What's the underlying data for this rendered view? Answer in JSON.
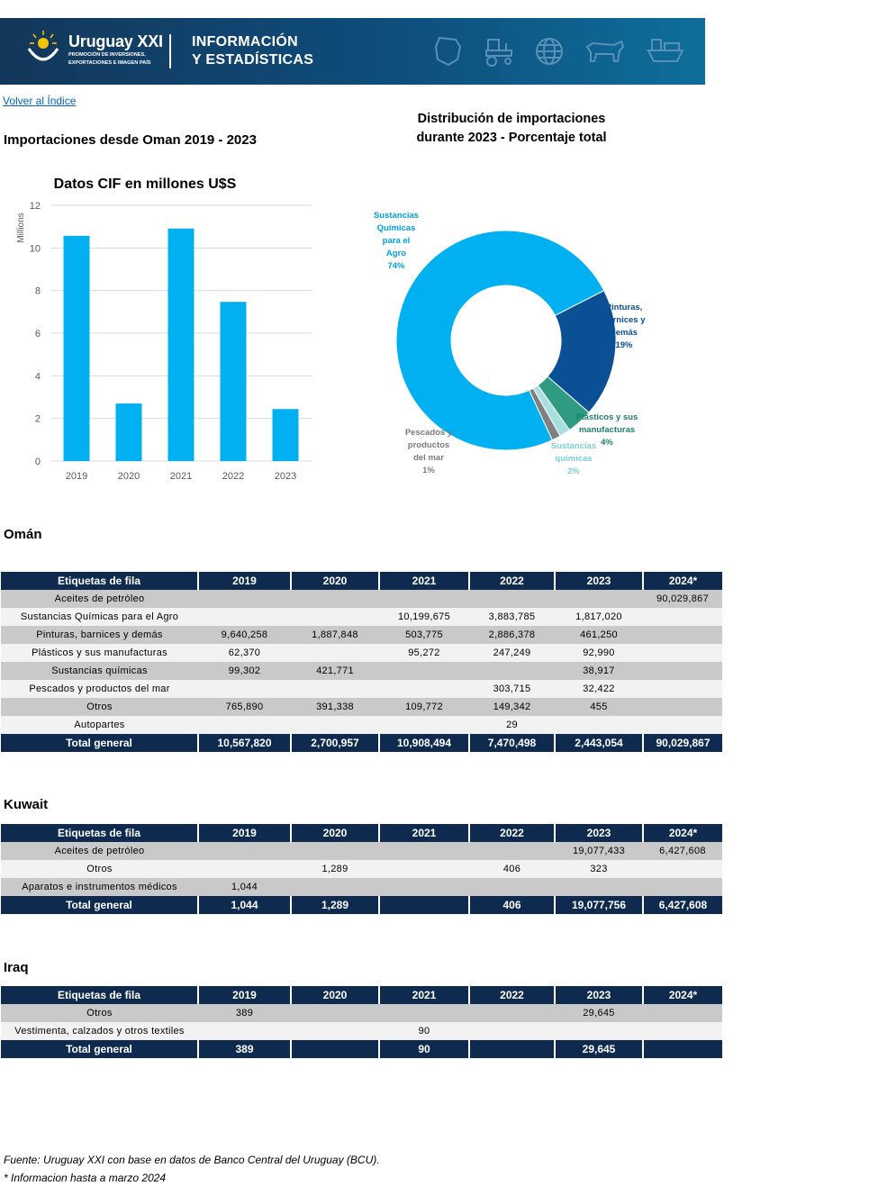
{
  "header": {
    "brand": "Uruguay XXI",
    "brand_sub_1": "PROMOCIÓN DE INVERSIONES,",
    "brand_sub_2": "EXPORTACIONES E IMAGEN PAÍS",
    "section_line_1": "INFORMACIÓN",
    "section_line_2": "Y ESTADÍSTICAS",
    "icons": [
      "uruguay-map-icon",
      "tractor-icon",
      "globe-icon",
      "cow-icon",
      "ship-icon"
    ]
  },
  "back_link": "Volver al Índice",
  "page_title": "Importaciones desde Oman 2019 - 2023",
  "chart_data": [
    {
      "type": "bar",
      "title": "Datos CIF en millones U$S",
      "ylabel": "Millions",
      "categories": [
        "2019",
        "2020",
        "2021",
        "2022",
        "2023"
      ],
      "values": [
        10.57,
        2.7,
        10.91,
        7.47,
        2.44
      ],
      "ylim": [
        0,
        12
      ],
      "yticks": [
        "0",
        "2",
        "4",
        "6",
        "8",
        "10",
        "12"
      ],
      "grid": true,
      "color": "#00b0f0"
    },
    {
      "type": "pie",
      "title_line_1": "Distribución de importaciones",
      "title_line_2": "durante 2023 - Porcentaje total",
      "donut": true,
      "slices": [
        {
          "label_lines": [
            "Sustancias",
            "Químicas",
            "para el",
            "Agro"
          ],
          "pct_label": "74%",
          "value": 74.4,
          "color": "#00b0f0",
          "label_color": "#00a0e0"
        },
        {
          "label_lines": [
            "Pinturas,",
            "barnices y",
            "demás"
          ],
          "pct_label": "19%",
          "value": 18.9,
          "color": "#0b4f94",
          "label_color": "#0b4f94"
        },
        {
          "label_lines": [
            "Plásticos y sus",
            "manufacturas"
          ],
          "pct_label": "4%",
          "value": 3.8,
          "color": "#2e9b82",
          "label_color": "#1f7f6a"
        },
        {
          "label_lines": [
            "Sustancias",
            "químicas"
          ],
          "pct_label": "2%",
          "value": 1.6,
          "color": "#a8e0e0",
          "label_color": "#7dcfcf"
        },
        {
          "label_lines": [
            "Pescados y",
            "productos",
            "del mar"
          ],
          "pct_label": "1%",
          "value": 1.3,
          "color": "#808080",
          "label_color": "#7a7a7a"
        }
      ]
    }
  ],
  "tables": [
    {
      "title": "Omán",
      "headers": [
        "Etiquetas de fila",
        "2019",
        "2020",
        "2021",
        "2022",
        "2023",
        "2024*"
      ],
      "rows": [
        [
          "Aceites de petróleo",
          "",
          "",
          "",
          "",
          "",
          "90,029,867"
        ],
        [
          "Sustancias Químicas para el Agro",
          "",
          "",
          "10,199,675",
          "3,883,785",
          "1,817,020",
          ""
        ],
        [
          "Pinturas, barnices y demás",
          "9,640,258",
          "1,887,848",
          "503,775",
          "2,886,378",
          "461,250",
          ""
        ],
        [
          "Plásticos y sus manufacturas",
          "62,370",
          "",
          "95,272",
          "247,249",
          "92,990",
          ""
        ],
        [
          "Sustancias químicas",
          "99,302",
          "421,771",
          "",
          "",
          "38,917",
          ""
        ],
        [
          "Pescados y productos del mar",
          "",
          "",
          "",
          "303,715",
          "32,422",
          ""
        ],
        [
          "Otros",
          "765,890",
          "391,338",
          "109,772",
          "149,342",
          "455",
          ""
        ],
        [
          "Autopartes",
          "",
          "",
          "",
          "29",
          "",
          ""
        ]
      ],
      "total": [
        "Total general",
        "10,567,820",
        "2,700,957",
        "10,908,494",
        "7,470,498",
        "2,443,054",
        "90,029,867"
      ]
    },
    {
      "title": "Kuwait",
      "headers": [
        "Etiquetas de fila",
        "2019",
        "2020",
        "2021",
        "2022",
        "2023",
        "2024*"
      ],
      "rows": [
        [
          "Aceites de petróleo",
          "",
          "",
          "",
          "",
          "19,077,433",
          "6,427,608"
        ],
        [
          "Otros",
          "",
          "1,289",
          "",
          "406",
          "323",
          ""
        ],
        [
          "Aparatos e instrumentos médicos",
          "1,044",
          "",
          "",
          "",
          "",
          ""
        ]
      ],
      "total": [
        "Total general",
        "1,044",
        "1,289",
        "",
        "406",
        "19,077,756",
        "6,427,608"
      ]
    },
    {
      "title": "Iraq",
      "headers": [
        "Etiquetas de fila",
        "2019",
        "2020",
        "2021",
        "2022",
        "2023",
        "2024*"
      ],
      "rows": [
        [
          "Otros",
          "389",
          "",
          "",
          "",
          "29,645",
          ""
        ],
        [
          "Vestimenta, calzados y otros textiles",
          "",
          "",
          "90",
          "",
          "",
          ""
        ]
      ],
      "total": [
        "Total general",
        "389",
        "",
        "90",
        "",
        "29,645",
        ""
      ]
    }
  ],
  "footnotes": {
    "source": "Fuente: Uruguay XXI con base en datos de Banco Central del Uruguay (BCU).",
    "note": "* Informacion hasta a marzo 2024"
  }
}
